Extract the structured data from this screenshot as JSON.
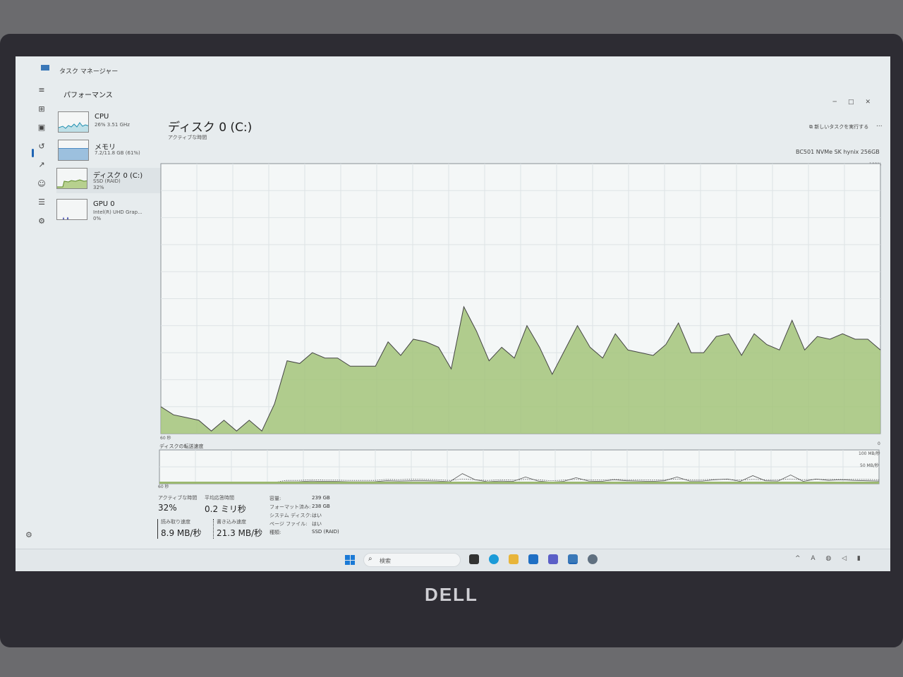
{
  "window": {
    "title": "タスク マネージャー",
    "section": "パフォーマンス"
  },
  "devices": [
    {
      "name": "CPU",
      "sub": "26% 3.51 GHz",
      "color": "#1f8fb0"
    },
    {
      "name": "メモリ",
      "sub": "7.2/11.8 GB (61%)",
      "color": "#4a8ac4"
    },
    {
      "name": "ディスク 0 (C:)",
      "sub": "SSD (RAID)",
      "sub2": "32%",
      "color": "#7ca33a"
    },
    {
      "name": "GPU 0",
      "sub": "Intel(R) UHD Grap...",
      "sub2": "0%",
      "color": "#4a52b0"
    }
  ],
  "main": {
    "title": "ディスク 0 (C:)",
    "new_task": "新しいタスクを実行する",
    "more": "...",
    "model": "BC501 NVMe SK hynix 256GB",
    "active_label": "アクティブな時間",
    "pct_max": "100%",
    "x_left": "60 秒",
    "x_right": "0",
    "xfer_label": "ディスクの転送速度",
    "mb100": "100 MB/秒",
    "mb50": "50 MB/秒",
    "x2_left": "60 秒"
  },
  "chart_data": [
    {
      "type": "area",
      "title": "アクティブな時間",
      "ylim": [
        0,
        100
      ],
      "xlim": [
        60,
        0
      ],
      "xlabel": "60 秒",
      "color": "#a3c47a",
      "grid": true,
      "values": [
        10,
        7,
        6,
        5,
        1,
        5,
        1,
        5,
        1,
        11,
        27,
        26,
        30,
        28,
        28,
        25,
        25,
        25,
        34,
        29,
        35,
        34,
        32,
        24,
        47,
        38,
        27,
        32,
        28,
        40,
        32,
        22,
        31,
        40,
        32,
        28,
        37,
        31,
        30,
        29,
        33,
        41,
        30,
        30,
        36,
        37,
        29,
        37,
        33,
        31,
        42,
        31,
        36,
        35,
        37,
        35,
        35,
        31
      ]
    },
    {
      "type": "line",
      "title": "ディスクの転送速度",
      "ylim": [
        0,
        100
      ],
      "unit": "MB/秒",
      "grid": true,
      "series": [
        {
          "values": [
            3,
            3,
            3,
            2,
            3,
            2,
            3,
            2,
            3,
            4,
            6,
            6,
            8,
            7,
            7,
            6,
            6,
            6,
            9,
            8,
            9,
            9,
            8,
            6,
            30,
            12,
            6,
            8,
            7,
            20,
            8,
            5,
            7,
            18,
            8,
            7,
            12,
            9,
            8,
            7,
            9,
            20,
            8,
            8,
            12,
            14,
            7,
            24,
            9,
            8,
            26,
            7,
            14,
            10,
            12,
            10,
            9,
            8
          ],
          "style": "solid"
        },
        {
          "values": [
            2,
            2,
            2,
            2,
            2,
            2,
            2,
            2,
            2,
            3,
            10,
            10,
            12,
            11,
            11,
            10,
            10,
            10,
            13,
            12,
            14,
            13,
            12,
            10,
            14,
            12,
            10,
            12,
            11,
            13,
            12,
            9,
            11,
            13,
            12,
            11,
            13,
            12,
            12,
            11,
            12,
            14,
            12,
            12,
            13,
            13,
            11,
            13,
            12,
            12,
            14,
            12,
            13,
            13,
            13,
            13,
            13,
            12
          ],
          "style": "dotted"
        }
      ]
    }
  ],
  "stats": {
    "active_label": "アクティブな時間",
    "active_value": "32%",
    "resp_label": "平均応答時間",
    "resp_value": "0.2 ミリ秒",
    "read_label": "読み取り速度",
    "read_value": "8.9 MB/秒",
    "write_label": "書き込み速度",
    "write_value": "21.3 MB/秒"
  },
  "props": [
    {
      "k": "容量:",
      "v": "239 GB"
    },
    {
      "k": "フォーマット済み:",
      "v": "238 GB"
    },
    {
      "k": "システム ディスク:",
      "v": "はい"
    },
    {
      "k": "ページ ファイル:",
      "v": "はい"
    },
    {
      "k": "種類:",
      "v": "SSD (RAID)"
    }
  ],
  "taskbar": {
    "search_placeholder": "検索"
  },
  "brand": "DELL"
}
